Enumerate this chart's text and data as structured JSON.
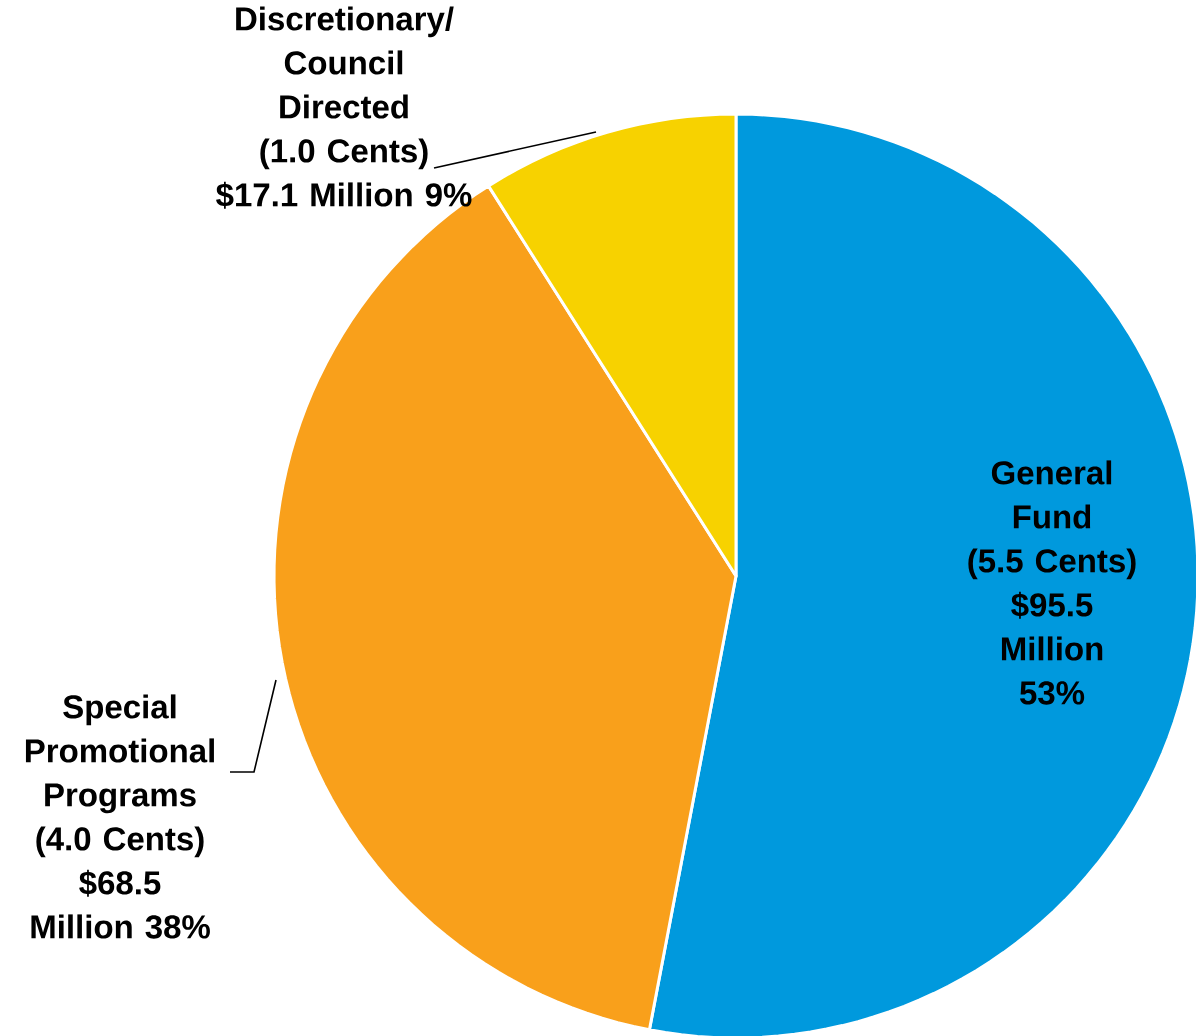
{
  "chart_data": {
    "type": "pie",
    "categories": [
      "General Fund",
      "Special Promotional Programs",
      "Discretionary/ Council Directed"
    ],
    "values": [
      53,
      38,
      9
    ],
    "value_labels": [
      "(5.5 Cents) $95.5 Million 53%",
      "(4.0 Cents) $68.5 Million 38%",
      "(1.0 Cents) $17.1 Million 9%"
    ],
    "colors": [
      "#0099dd",
      "#f9a01b",
      "#f7d200"
    ],
    "legend": false
  }
}
